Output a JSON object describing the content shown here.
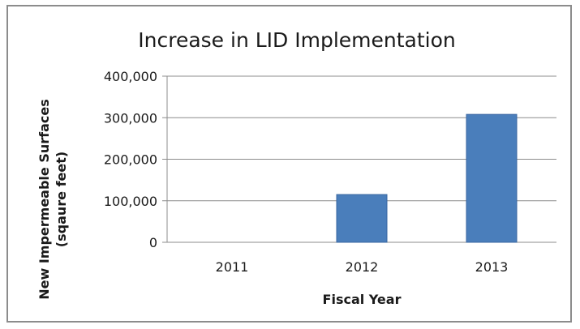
{
  "chart_data": {
    "type": "bar",
    "title": "Increase in LID Implementation",
    "xlabel": "Fiscal Year",
    "ylabel_lines": [
      "New Impermeable Surfaces",
      "(sqaure feet)"
    ],
    "categories": [
      "2011",
      "2012",
      "2013"
    ],
    "values": [
      0,
      115000,
      308000
    ],
    "ylim": [
      0,
      400000
    ],
    "yticks": [
      0,
      100000,
      200000,
      300000,
      400000
    ],
    "ytick_labels": [
      "0",
      "100,000",
      "200,000",
      "300,000",
      "400,000"
    ],
    "grid": true,
    "legend": "none",
    "bar_color": "#4a7ebb",
    "bar_edge_color": "#3a67a0"
  }
}
